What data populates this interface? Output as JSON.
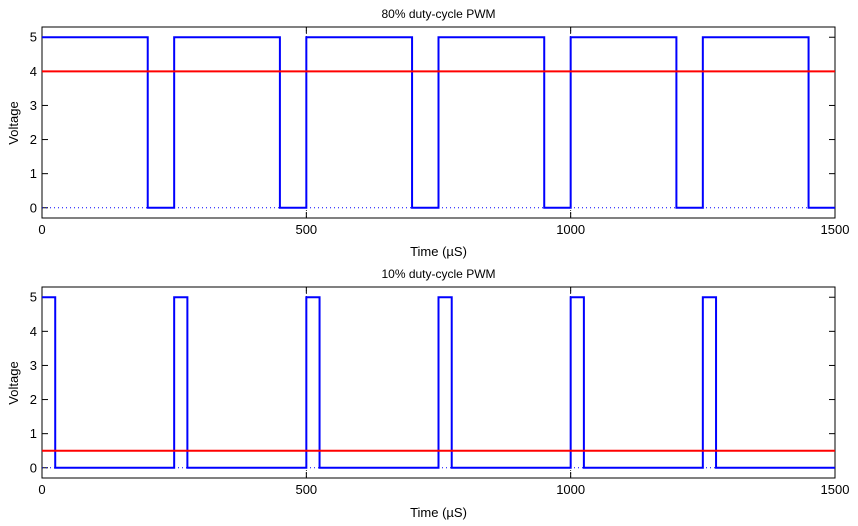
{
  "chart_data": [
    {
      "type": "line",
      "title": "80% duty-cycle PWM",
      "xlabel": "Time (µS)",
      "ylabel": "Voltage",
      "xlim": [
        0,
        1500
      ],
      "ylim": [
        -0.3,
        5.3
      ],
      "xticks": [
        0,
        500,
        1000,
        1500
      ],
      "yticks": [
        0,
        1,
        2,
        3,
        4,
        5
      ],
      "grid": "x-ticks-only",
      "series": [
        {
          "color": "#0000ff",
          "x": [
            0,
            200,
            200,
            250,
            250,
            450,
            450,
            500,
            500,
            700,
            700,
            750,
            750,
            950,
            950,
            1000,
            1000,
            1200,
            1200,
            1250,
            1250,
            1450,
            1450,
            1500
          ],
          "y": [
            5,
            5,
            0,
            0,
            5,
            5,
            0,
            0,
            5,
            5,
            0,
            0,
            5,
            5,
            0,
            0,
            5,
            5,
            0,
            0,
            5,
            5,
            0,
            0
          ]
        },
        {
          "color": "#ff0000",
          "x": [
            0,
            1500
          ],
          "y": [
            4,
            4
          ]
        },
        {
          "color": "#0000ff",
          "style": "dotted",
          "x": [
            0,
            1500
          ],
          "y": [
            0,
            0
          ]
        }
      ]
    },
    {
      "type": "line",
      "title": "10% duty-cycle PWM",
      "xlabel": "Time (µS)",
      "ylabel": "Voltage",
      "xlim": [
        0,
        1500
      ],
      "ylim": [
        -0.3,
        5.3
      ],
      "xticks": [
        0,
        500,
        1000,
        1500
      ],
      "yticks": [
        0,
        1,
        2,
        3,
        4,
        5
      ],
      "grid": "x-ticks-only",
      "series": [
        {
          "color": "#0000ff",
          "x": [
            0,
            25,
            25,
            250,
            250,
            275,
            275,
            500,
            500,
            525,
            525,
            750,
            750,
            775,
            775,
            1000,
            1000,
            1025,
            1025,
            1250,
            1250,
            1275,
            1275,
            1500
          ],
          "y": [
            5,
            5,
            0,
            0,
            5,
            5,
            0,
            0,
            5,
            5,
            0,
            0,
            5,
            5,
            0,
            0,
            5,
            5,
            0,
            0,
            5,
            5,
            0,
            0
          ]
        },
        {
          "color": "#ff0000",
          "x": [
            0,
            1500
          ],
          "y": [
            0.5,
            0.5
          ]
        },
        {
          "color": "#0000ff",
          "style": "dotted",
          "x": [
            0,
            1500
          ],
          "y": [
            0,
            0
          ]
        }
      ]
    }
  ]
}
